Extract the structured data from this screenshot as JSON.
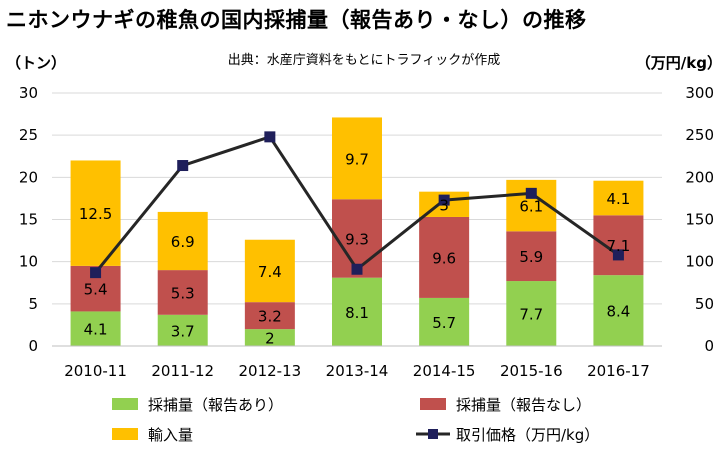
{
  "title": "ニホンウナギの稚魚の国内採捕量（報告あり・なし）の推移",
  "subtitle": "出典：水産庁資料をもとにトラフィックが作成",
  "chart_data": {
    "type": "bar",
    "stacked": true,
    "categories": [
      "2010-11",
      "2011-12",
      "2012-13",
      "2013-14",
      "2014-15",
      "2015-16",
      "2016-17"
    ],
    "y_left": {
      "unit": "（トン）",
      "ylim": [
        0,
        30
      ],
      "ticks": [
        "0",
        "5",
        "10",
        "15",
        "20",
        "25",
        "30"
      ]
    },
    "y_right": {
      "unit": "（万円/kg）",
      "ylim": [
        0,
        300
      ],
      "ticks": [
        "0",
        "50",
        "100",
        "150",
        "200",
        "250",
        "300"
      ]
    },
    "series": [
      {
        "name": "採捕量（報告あり）",
        "type": "bar",
        "axis": "left",
        "color": "#92d050",
        "values": [
          4.1,
          3.7,
          2,
          8.1,
          5.7,
          7.7,
          8.4
        ],
        "labels": [
          "4.1",
          "3.7",
          "2",
          "8.1",
          "5.7",
          "7.7",
          "8.4"
        ]
      },
      {
        "name": "採捕量（報告なし）",
        "type": "bar",
        "axis": "left",
        "color": "#c0504d",
        "values": [
          5.4,
          5.3,
          3.2,
          9.3,
          9.6,
          5.9,
          7.1
        ],
        "labels": [
          "5.4",
          "5.3",
          "3.2",
          "9.3",
          "9.6",
          "5.9",
          "7.1"
        ]
      },
      {
        "name": "輸入量",
        "type": "bar",
        "axis": "left",
        "color": "#ffc000",
        "values": [
          12.5,
          6.9,
          7.4,
          9.7,
          3,
          6.1,
          4.1
        ],
        "labels": [
          "12.5",
          "6.9",
          "7.4",
          "9.7",
          "3",
          "6.1",
          "4.1"
        ]
      },
      {
        "name": "取引価格（万円/kg）",
        "type": "line",
        "axis": "right",
        "color": "#262626",
        "values": [
          87,
          214,
          248,
          91,
          173,
          181,
          108
        ]
      }
    ],
    "grid": true,
    "legend": "bottom"
  }
}
